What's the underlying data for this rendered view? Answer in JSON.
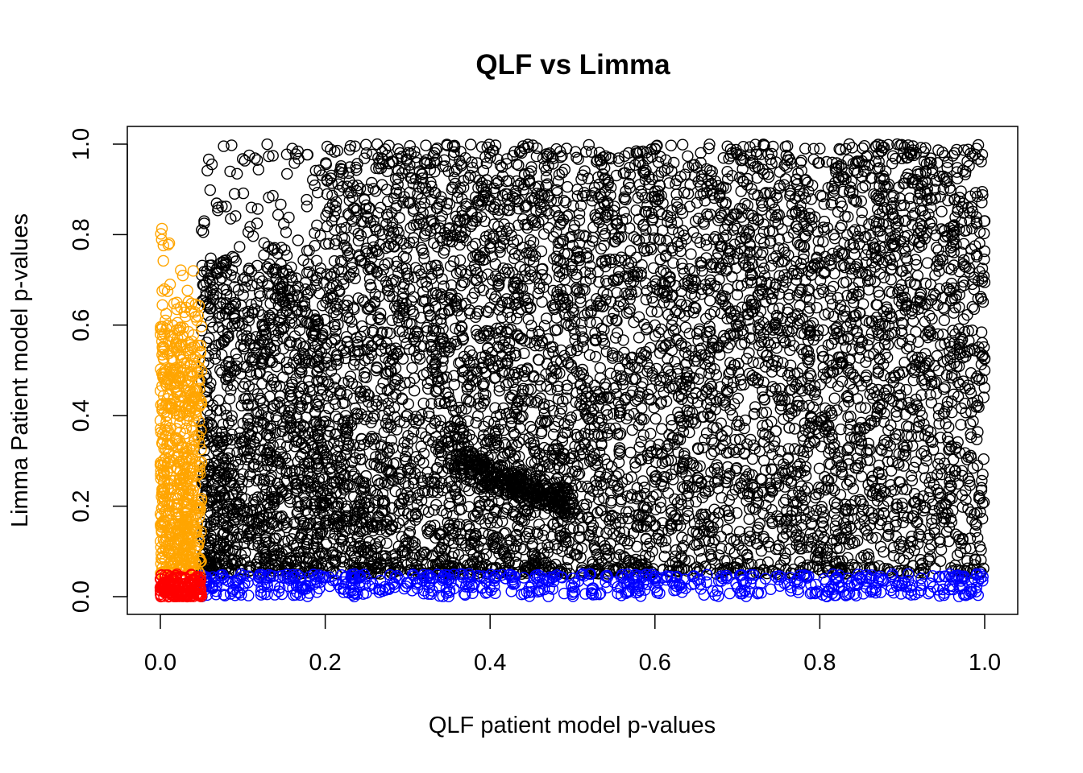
{
  "chart_data": {
    "type": "scatter",
    "title": "QLF vs Limma",
    "xlabel": "QLF patient model p-values",
    "ylabel": "Limma Patient model p-values",
    "xlim": [
      0,
      1
    ],
    "ylim": [
      0,
      1
    ],
    "x_ticks": [
      0.0,
      0.2,
      0.4,
      0.6,
      0.8,
      1.0
    ],
    "x_tick_labels": [
      "0.0",
      "0.2",
      "0.4",
      "0.6",
      "0.8",
      "1.0"
    ],
    "y_ticks": [
      0.0,
      0.2,
      0.4,
      0.6,
      0.8,
      1.0
    ],
    "y_tick_labels": [
      "0.0",
      "0.2",
      "0.4",
      "0.6",
      "0.8",
      "1.0"
    ],
    "grid": false,
    "legend": "none",
    "marker": "open-circle",
    "threshold": 0.05,
    "groups": [
      {
        "color": "#FF0000",
        "rule": "x < 0.05 and y < 0.05"
      },
      {
        "color": "#FFA500",
        "rule": "x < 0.05 and y >= 0.05"
      },
      {
        "color": "#0000FF",
        "rule": "x >= 0.05 and y < 0.05"
      },
      {
        "color": "#000000",
        "rule": "x >= 0.05 and y >= 0.05"
      }
    ],
    "sample_points": [
      [
        0.0,
        0.02
      ],
      [
        0.01,
        0.03
      ],
      [
        0.02,
        0.01
      ],
      [
        0.03,
        0.04
      ],
      [
        0.04,
        0.02
      ],
      [
        0.01,
        0.2
      ],
      [
        0.02,
        0.35
      ],
      [
        0.03,
        0.5
      ],
      [
        0.02,
        0.65
      ],
      [
        0.04,
        0.72
      ],
      [
        0.05,
        0.81
      ],
      [
        0.1,
        0.02
      ],
      [
        0.3,
        0.03
      ],
      [
        0.5,
        0.01
      ],
      [
        0.7,
        0.02
      ],
      [
        0.9,
        0.03
      ],
      [
        0.99,
        0.02
      ],
      [
        0.07,
        0.86
      ],
      [
        0.09,
        0.89
      ],
      [
        0.16,
        0.99
      ],
      [
        0.25,
        0.98
      ],
      [
        0.4,
        0.97
      ],
      [
        0.6,
        0.99
      ],
      [
        0.8,
        0.99
      ],
      [
        0.99,
        0.99
      ],
      [
        0.42,
        0.25
      ],
      [
        0.45,
        0.22
      ],
      [
        0.88,
        0.94
      ],
      [
        0.95,
        0.9
      ],
      [
        1.0,
        0.83
      ],
      [
        1.0,
        0.5
      ],
      [
        0.2,
        0.4
      ],
      [
        0.6,
        0.6
      ]
    ],
    "n_points_approx": 9000
  }
}
